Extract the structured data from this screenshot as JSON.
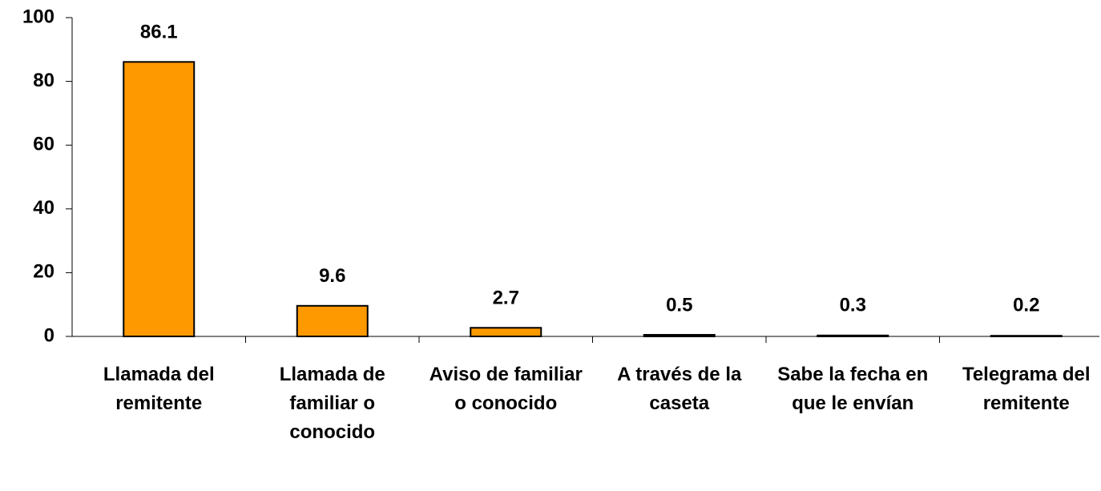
{
  "chart_data": {
    "type": "bar",
    "categories": [
      "Llamada del remitente",
      "Llamada de familiar o conocido",
      "Aviso de familiar o conocido",
      "A través de la caseta",
      "Sabe la fecha en que le envían",
      "Telegrama del remitente"
    ],
    "values": [
      86.1,
      9.6,
      2.7,
      0.5,
      0.3,
      0.2
    ],
    "color": "#FF9900",
    "ylim": [
      0,
      100
    ],
    "yticks": [
      0,
      20,
      40,
      60,
      80,
      100
    ],
    "grid": false
  }
}
